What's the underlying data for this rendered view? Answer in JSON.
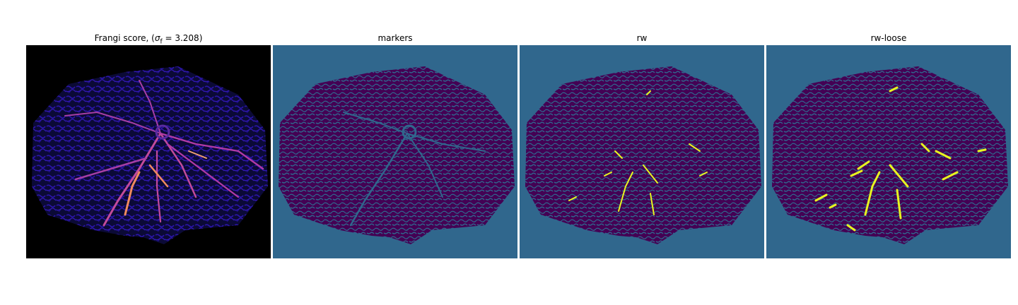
{
  "figure": {
    "panels": [
      {
        "id": "frangi",
        "title_prefix": "Frangi score, (",
        "title_sigma": "σ",
        "title_sub": "f",
        "title_suffix": " = 3.208)",
        "cmap": "magma-like",
        "background": "#000000"
      },
      {
        "id": "markers",
        "title": "markers",
        "cmap": "viridis",
        "background": "#30678d"
      },
      {
        "id": "rw",
        "title": "rw",
        "cmap": "viridis",
        "background": "#30678d"
      },
      {
        "id": "rw-loose",
        "title": "rw-loose",
        "cmap": "viridis",
        "background": "#30678d"
      }
    ],
    "colors": {
      "tissue_dark": "#440154",
      "teal": "#30678d",
      "yellow": "#e8f51f",
      "frangi_blue": "#2a14a8",
      "frangi_magenta": "#b23aa6",
      "frangi_orange": "#f08a5d"
    }
  }
}
